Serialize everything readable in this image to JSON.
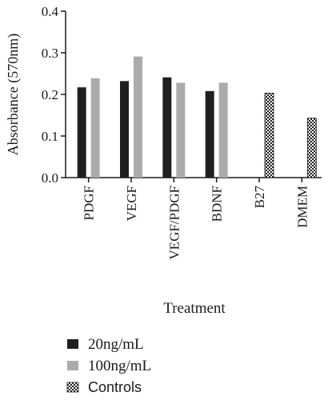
{
  "chart_data": {
    "type": "bar",
    "title": "",
    "xlabel": "Treatment",
    "ylabel": "Absorbance (570nm)",
    "ylim": [
      0,
      0.4
    ],
    "yticks": [
      "0.0",
      "0.1",
      "0.2",
      "0.3",
      "0.4"
    ],
    "categories": [
      "PDGF",
      "VEGF",
      "VEGF/PDGF",
      "BDNF",
      "B27",
      "DMEM"
    ],
    "series": [
      {
        "name": "20ng/mL",
        "color": "#1f1f1f",
        "pattern": "solid",
        "values": [
          0.217,
          0.232,
          0.241,
          0.208,
          null,
          null
        ]
      },
      {
        "name": "100ng/mL",
        "color": "#ababab",
        "pattern": "solid",
        "values": [
          0.239,
          0.291,
          0.228,
          0.228,
          null,
          null
        ]
      },
      {
        "name": "Controls",
        "color": "#1f1f1f",
        "pattern": "checker",
        "values": [
          null,
          null,
          null,
          null,
          0.203,
          0.143
        ]
      }
    ],
    "legend_position": "bottom-left",
    "grid": false
  }
}
